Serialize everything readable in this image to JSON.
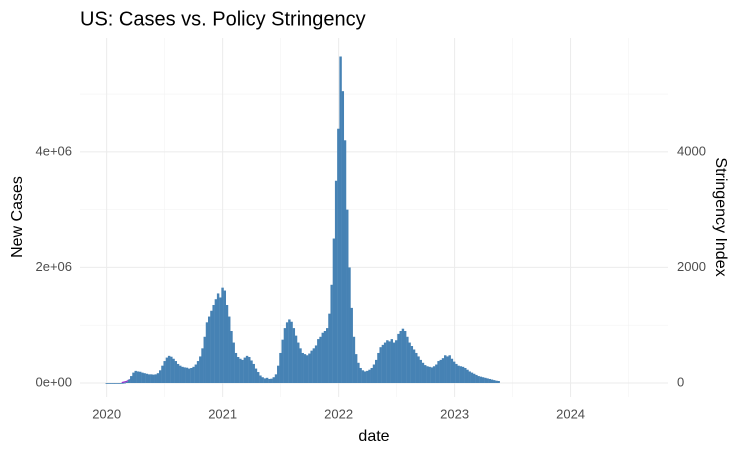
{
  "chart_data": {
    "type": "bar",
    "title": "US: Cases vs. Policy Stringency",
    "x_label": "date",
    "y_label": "New Cases",
    "y2_label": "Stringency Index",
    "grid": true,
    "xlim": [
      2019.77,
      2024.84
    ],
    "xticks": [
      2020,
      2021,
      2022,
      2023,
      2024
    ],
    "ylim": [
      -242000,
      5970000
    ],
    "yticks": [
      {
        "value": 0,
        "label": "0e+00"
      },
      {
        "value": 2000000,
        "label": "2e+06"
      },
      {
        "value": 4000000,
        "label": "4e+06"
      }
    ],
    "y2lim": [
      -242,
      5970
    ],
    "y2ticks": [
      0,
      2000,
      4000
    ],
    "x": [
      2020.0,
      2020.0192,
      2020.0384,
      2020.0576,
      2020.0768,
      2020.096,
      2020.1152,
      2020.1344,
      2020.1536,
      2020.1728,
      2020.192,
      2020.2112,
      2020.2304,
      2020.2496,
      2020.2688,
      2020.288,
      2020.3072,
      2020.3264,
      2020.3456,
      2020.3648,
      2020.384,
      2020.4032,
      2020.4224,
      2020.4416,
      2020.4608,
      2020.48,
      2020.4992,
      2020.5184,
      2020.5376,
      2020.5568,
      2020.576,
      2020.5952,
      2020.6144,
      2020.6336,
      2020.6528,
      2020.672,
      2020.6912,
      2020.7104,
      2020.7296,
      2020.7488,
      2020.768,
      2020.7872,
      2020.8064,
      2020.8256,
      2020.8448,
      2020.864,
      2020.8832,
      2020.9024,
      2020.9216,
      2020.9408,
      2020.96,
      2020.9792,
      2020.9984,
      2021.0176,
      2021.0368,
      2021.056,
      2021.0752,
      2021.0944,
      2021.1136,
      2021.1328,
      2021.152,
      2021.1712,
      2021.1904,
      2021.2096,
      2021.2288,
      2021.248,
      2021.2672,
      2021.2864,
      2021.3056,
      2021.3248,
      2021.344,
      2021.3632,
      2021.3824,
      2021.4016,
      2021.4208,
      2021.44,
      2021.4592,
      2021.4784,
      2021.4976,
      2021.5168,
      2021.536,
      2021.5552,
      2021.5744,
      2021.5936,
      2021.6128,
      2021.632,
      2021.6512,
      2021.6704,
      2021.6896,
      2021.7088,
      2021.728,
      2021.7472,
      2021.7664,
      2021.7856,
      2021.8048,
      2021.824,
      2021.8432,
      2021.8624,
      2021.8816,
      2021.9008,
      2021.92,
      2021.9392,
      2021.9584,
      2021.9776,
      2021.9968,
      2022.016,
      2022.0352,
      2022.0544,
      2022.0736,
      2022.0928,
      2022.112,
      2022.1312,
      2022.1504,
      2022.1696,
      2022.1888,
      2022.208,
      2022.2272,
      2022.2464,
      2022.2656,
      2022.2848,
      2022.304,
      2022.3232,
      2022.3424,
      2022.3616,
      2022.3808,
      2022.4,
      2022.4192,
      2022.4384,
      2022.4576,
      2022.4768,
      2022.496,
      2022.5152,
      2022.5344,
      2022.5536,
      2022.5728,
      2022.592,
      2022.6112,
      2022.6304,
      2022.6496,
      2022.6688,
      2022.688,
      2022.7072,
      2022.7264,
      2022.7456,
      2022.7648,
      2022.784,
      2022.8032,
      2022.8224,
      2022.8416,
      2022.8608,
      2022.88,
      2022.8992,
      2022.9184,
      2022.9376,
      2022.9568,
      2022.976,
      2022.9952,
      2023.0144,
      2023.0336,
      2023.0528,
      2023.072,
      2023.0912,
      2023.1104,
      2023.1296,
      2023.1488,
      2023.168,
      2023.1872,
      2023.2064,
      2023.2256,
      2023.2448,
      2023.264,
      2023.2832,
      2023.3024,
      2023.3216,
      2023.3408,
      2023.36,
      2023.3792
    ],
    "series": [
      {
        "color": "#4682b4",
        "values": [
          0,
          0,
          0,
          0,
          0,
          0,
          0,
          1000,
          5000,
          20000,
          60000,
          120000,
          180000,
          210000,
          200000,
          195000,
          180000,
          170000,
          160000,
          150000,
          150000,
          145000,
          150000,
          170000,
          220000,
          300000,
          380000,
          440000,
          470000,
          455000,
          420000,
          380000,
          330000,
          300000,
          280000,
          270000,
          265000,
          250000,
          260000,
          280000,
          320000,
          380000,
          460000,
          600000,
          800000,
          1050000,
          1150000,
          1250000,
          1350000,
          1450000,
          1550000,
          1480000,
          1650000,
          1600000,
          1350000,
          1150000,
          900000,
          700000,
          520000,
          450000,
          420000,
          400000,
          440000,
          470000,
          450000,
          390000,
          330000,
          250000,
          190000,
          130000,
          100000,
          80000,
          90000,
          70000,
          75000,
          100000,
          150000,
          300000,
          520000,
          750000,
          950000,
          1050000,
          1100000,
          1060000,
          950000,
          820000,
          700000,
          600000,
          520000,
          500000,
          480000,
          510000,
          560000,
          600000,
          650000,
          760000,
          800000,
          870000,
          900000,
          950000,
          1200000,
          1700000,
          2500000,
          3500000,
          4400000,
          5650000,
          5050000,
          4200000,
          3000000,
          2000000,
          1300000,
          800000,
          500000,
          350000,
          260000,
          220000,
          200000,
          210000,
          230000,
          260000,
          320000,
          400000,
          520000,
          620000,
          660000,
          700000,
          740000,
          720000,
          760000,
          700000,
          740000,
          850000,
          900000,
          940000,
          900000,
          800000,
          700000,
          640000,
          580000,
          520000,
          460000,
          400000,
          350000,
          310000,
          290000,
          280000,
          270000,
          290000,
          320000,
          380000,
          400000,
          430000,
          480000,
          460000,
          480000,
          420000,
          370000,
          330000,
          300000,
          290000,
          280000,
          260000,
          230000,
          200000,
          180000,
          160000,
          140000,
          120000,
          110000,
          100000,
          90000,
          80000,
          70000,
          60000,
          50000,
          40000,
          35000
        ]
      },
      {
        "type": "line",
        "axis": "y2",
        "color": "#9b30d0",
        "x": [
          2020.13,
          2020.17,
          2020.2,
          2020.23
        ],
        "values": [
          5,
          25,
          55,
          73
        ]
      }
    ]
  }
}
